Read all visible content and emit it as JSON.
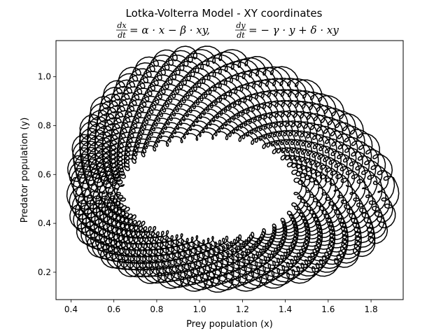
{
  "chart_data": {
    "type": "line",
    "title": "Lotka-Volterra Model - XY coordinates",
    "subtitle": {
      "eq1_num": "dx",
      "eq1_den": "dt",
      "eq1_rhs": "= α · x − β · xy,",
      "eq2_num": "dy",
      "eq2_den": "dt",
      "eq2_rhs": "= − γ · y + δ · xy"
    },
    "xlabel": "Prey population (x)",
    "ylabel": "Predator population (y)",
    "xlim": [
      0.33,
      1.95
    ],
    "ylim": [
      0.088,
      1.148
    ],
    "xticks": [
      0.4,
      0.6,
      0.8,
      1.0,
      1.2,
      1.4,
      1.6,
      1.8
    ],
    "xtick_labels": [
      "0.4",
      "0.6",
      "0.8",
      "1.0",
      "1.2",
      "1.4",
      "1.6",
      "1.8"
    ],
    "yticks": [
      0.2,
      0.4,
      0.6,
      0.8,
      1.0
    ],
    "ytick_labels": [
      "0.2",
      "0.4",
      "0.6",
      "0.8",
      "1.0"
    ],
    "grid": false,
    "line_color": "#000000",
    "series": [
      {
        "description": "phase-space trajectory (dense band of wobbling orbits)",
        "center": [
          1.08,
          0.56
        ],
        "orbit_count": 24,
        "inner_orbit": {
          "x_min": 0.63,
          "x_max": 1.46,
          "y_min": 0.33,
          "y_max": 0.76
        },
        "outer_orbit": {
          "x_min": 0.41,
          "x_max": 1.9,
          "y_min": 0.145,
          "y_max": 1.1
        }
      }
    ]
  }
}
